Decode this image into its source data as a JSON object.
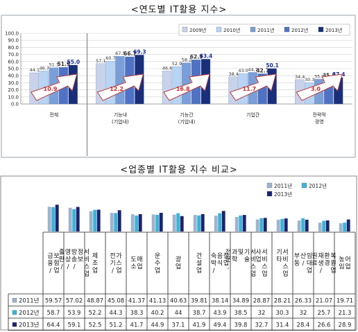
{
  "chart_data": [
    {
      "type": "bar",
      "title": "<연도별 IT활용 지수>",
      "ylim": [
        0,
        100
      ],
      "yticks": [
        "0.0",
        "10.0",
        "20.0",
        "30.0",
        "40.0",
        "50.0",
        "60.0",
        "70.0",
        "80.0",
        "90.0",
        "100.0"
      ],
      "legend_position": "top-right",
      "grid": true,
      "categories": [
        "전체",
        "기능내\n(기업내)",
        "기능간\n(기업내)",
        "기업간",
        "전략적\n경영"
      ],
      "series": [
        {
          "name": "2009년",
          "color": "#c8d2ea",
          "values": [
            44.1,
            57.1,
            46.6,
            38.4,
            34.4
          ],
          "labels": [
            "44.1",
            "57.1",
            "46.6",
            "38.4",
            "34.4"
          ]
        },
        {
          "name": "2010년",
          "color": "#b8d4f4",
          "values": [
            46.7,
            60.7,
            52.9,
            43.0,
            30.3
          ],
          "labels": [
            "46.7",
            "60.7",
            "52.9",
            "43.0",
            "30.3"
          ]
        },
        {
          "name": "2011년",
          "color": "#7a9fd8",
          "values": [
            51.3,
            67.5,
            58.2,
            44.7,
            35.0
          ],
          "labels": [
            "51.3",
            "67.5",
            "58.2",
            "44.7",
            "35.0"
          ]
        },
        {
          "name": "2012년",
          "color": "#4f72c4",
          "values": [
            51.9,
            66.7,
            62.5,
            42.7,
            35.8
          ],
          "labels": [
            "51.9",
            "66.7",
            "62.5",
            "42.7",
            "35.8"
          ]
        },
        {
          "name": "2013년",
          "color": "#1a2f7a",
          "values": [
            55.0,
            69.3,
            63.4,
            50.1,
            37.4
          ],
          "labels": [
            "55.0",
            "69.3",
            "63.4",
            "50.1",
            "37.4"
          ]
        }
      ],
      "annotations": [
        "10.9",
        "12.2",
        "16.8",
        "11.7",
        "3.0"
      ]
    },
    {
      "type": "bar",
      "title": "<업종별 IT활용 지수 비교>",
      "legend_position": "top-right",
      "categories": [
        "금융/\n보험업",
        "출판/\n영상/\n방송/\n정보\n서비스업",
        "제조업",
        "전기/\n가스업",
        "도소\n매업",
        "운수업",
        "광업",
        "건설업",
        "숙박/\n음식\n점업",
        "전문,\n과학\n및\n기술\n서비스업",
        "사업\n서비스업",
        "기타\n서비스업",
        "부동\n산/\n임대업",
        "원료\n재생/\n환경\n복원업",
        "농임\n어업"
      ],
      "series": [
        {
          "name": "2011년",
          "color": "#9fb3cf",
          "values": [
            59.57,
            57.02,
            48.87,
            45.08,
            41.37,
            41.13,
            40.63,
            39.81,
            38.14,
            34.89,
            28.87,
            28.21,
            26.33,
            21.07,
            19.71
          ],
          "labels": [
            "59.57",
            "57.02",
            "48.87",
            "45.08",
            "41.37",
            "41.13",
            "40.63",
            "39.81",
            "38.14",
            "34.89",
            "28.87",
            "28.21",
            "26.33",
            "21.07",
            "19.71"
          ]
        },
        {
          "name": "2012년",
          "color": "#3bb4d6",
          "values": [
            58.7,
            53.9,
            52.2,
            44.3,
            38.3,
            40.2,
            44,
            38.7,
            43.9,
            38.5,
            32,
            30.3,
            32,
            25.7,
            21.3
          ],
          "labels": [
            "58.7",
            "53.9",
            "52.2",
            "44.3",
            "38.3",
            "40.2",
            "44",
            "38.7",
            "43.9",
            "38.5",
            "32",
            "30.3",
            "32",
            "25.7",
            "21.3"
          ]
        },
        {
          "name": "2013년",
          "color": "#1b2470",
          "values": [
            64.4,
            59.1,
            52.5,
            51.2,
            41.7,
            44.9,
            37.1,
            41.9,
            49.4,
            39.8,
            32.7,
            31.4,
            28.4,
            26.6,
            28.9
          ],
          "labels": [
            "64.4",
            "59.1",
            "52.5",
            "51.2",
            "41.7",
            "44.9",
            "37.1",
            "41.9",
            "49.4",
            "39.8",
            "32.7",
            "31.4",
            "28.4",
            "26.6",
            "28.9"
          ]
        }
      ]
    }
  ]
}
